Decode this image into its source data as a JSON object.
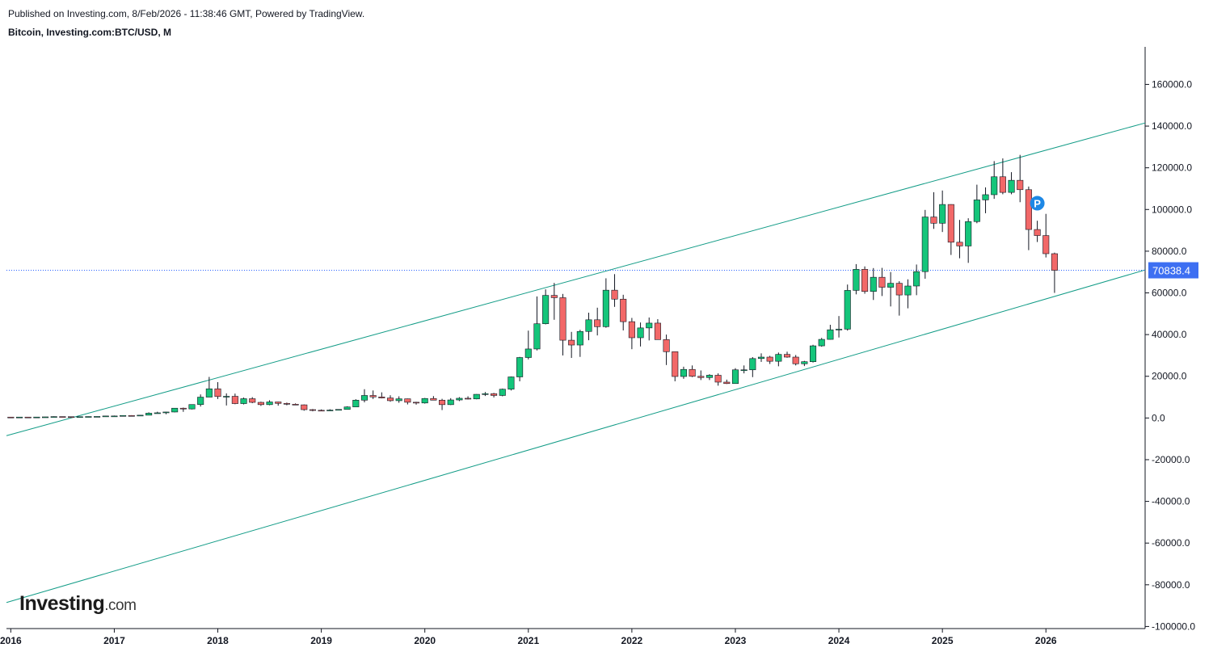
{
  "header": {
    "published_line": "Published on Investing.com, 8/Feb/2026 - 11:38:46 GMT, Powered by TradingView.",
    "symbol_line": "Bitcoin, Investing.com:BTC/USD, M"
  },
  "logo": {
    "brand": "Investing",
    "suffix": ".com"
  },
  "colors": {
    "up": "#14c57a",
    "down": "#f26868",
    "wick": "#131722",
    "channel": "#139c87",
    "price_line": "#2962ff",
    "price_badge": "#3d6ff2"
  },
  "chart_data": {
    "type": "candlestick",
    "interval": "M",
    "yticks": [
      160000,
      140000,
      120000,
      100000,
      80000,
      60000,
      40000,
      20000,
      0,
      -20000,
      -40000,
      -60000,
      -80000,
      -100000
    ],
    "ytick_labels": [
      "160000.0",
      "140000.0",
      "120000.0",
      "100000.0",
      "80000.0",
      "60000.0",
      "40000.0",
      "20000.0",
      "0.0",
      "-20000.0",
      "-40000.0",
      "-60000.0",
      "-80000.0",
      "-100000.0"
    ],
    "ylim": [
      -101000,
      178000
    ],
    "xlim": [
      "2016-01",
      "2026-12"
    ],
    "xticks": [
      {
        "label": "2016",
        "date": "2016-01"
      },
      {
        "label": "2017",
        "date": "2017-01"
      },
      {
        "label": "2018",
        "date": "2018-01"
      },
      {
        "label": "2019",
        "date": "2019-01"
      },
      {
        "label": "2020",
        "date": "2020-01"
      },
      {
        "label": "2021",
        "date": "2021-01"
      },
      {
        "label": "2022",
        "date": "2022-01"
      },
      {
        "label": "2023",
        "date": "2023-01"
      },
      {
        "label": "2024",
        "date": "2024-01"
      },
      {
        "label": "2025",
        "date": "2025-01"
      },
      {
        "label": "2026",
        "date": "2026-01"
      }
    ],
    "candles": [
      {
        "date": "2016-01",
        "o": 430,
        "h": 460,
        "l": 350,
        "c": 370
      },
      {
        "date": "2016-02",
        "o": 370,
        "h": 440,
        "l": 360,
        "c": 435
      },
      {
        "date": "2016-03",
        "o": 435,
        "h": 440,
        "l": 400,
        "c": 415
      },
      {
        "date": "2016-04",
        "o": 415,
        "h": 465,
        "l": 410,
        "c": 450
      },
      {
        "date": "2016-05",
        "o": 450,
        "h": 550,
        "l": 440,
        "c": 530
      },
      {
        "date": "2016-06",
        "o": 530,
        "h": 780,
        "l": 520,
        "c": 670
      },
      {
        "date": "2016-07",
        "o": 670,
        "h": 700,
        "l": 610,
        "c": 625
      },
      {
        "date": "2016-08",
        "o": 625,
        "h": 630,
        "l": 480,
        "c": 575
      },
      {
        "date": "2016-09",
        "o": 575,
        "h": 620,
        "l": 570,
        "c": 610
      },
      {
        "date": "2016-10",
        "o": 610,
        "h": 740,
        "l": 600,
        "c": 700
      },
      {
        "date": "2016-11",
        "o": 700,
        "h": 760,
        "l": 690,
        "c": 745
      },
      {
        "date": "2016-12",
        "o": 745,
        "h": 980,
        "l": 740,
        "c": 965
      },
      {
        "date": "2017-01",
        "o": 965,
        "h": 1160,
        "l": 750,
        "c": 970
      },
      {
        "date": "2017-02",
        "o": 970,
        "h": 1210,
        "l": 910,
        "c": 1190
      },
      {
        "date": "2017-03",
        "o": 1190,
        "h": 1350,
        "l": 890,
        "c": 1080
      },
      {
        "date": "2017-04",
        "o": 1080,
        "h": 1400,
        "l": 1070,
        "c": 1350
      },
      {
        "date": "2017-05",
        "o": 1350,
        "h": 2700,
        "l": 1330,
        "c": 2300
      },
      {
        "date": "2017-06",
        "o": 2300,
        "h": 3000,
        "l": 2100,
        "c": 2480
      },
      {
        "date": "2017-07",
        "o": 2480,
        "h": 2950,
        "l": 1800,
        "c": 2870
      },
      {
        "date": "2017-08",
        "o": 2870,
        "h": 4700,
        "l": 2700,
        "c": 4700
      },
      {
        "date": "2017-09",
        "o": 4700,
        "h": 5000,
        "l": 2950,
        "c": 4340
      },
      {
        "date": "2017-10",
        "o": 4340,
        "h": 6450,
        "l": 4100,
        "c": 6450
      },
      {
        "date": "2017-11",
        "o": 6450,
        "h": 11300,
        "l": 5500,
        "c": 10000
      },
      {
        "date": "2017-12",
        "o": 10000,
        "h": 19700,
        "l": 10000,
        "c": 14000
      },
      {
        "date": "2018-01",
        "o": 14000,
        "h": 17200,
        "l": 9100,
        "c": 10300
      },
      {
        "date": "2018-02",
        "o": 10300,
        "h": 11800,
        "l": 6000,
        "c": 10400
      },
      {
        "date": "2018-03",
        "o": 10400,
        "h": 11700,
        "l": 6600,
        "c": 6900
      },
      {
        "date": "2018-04",
        "o": 6900,
        "h": 9800,
        "l": 6500,
        "c": 9250
      },
      {
        "date": "2018-05",
        "o": 9250,
        "h": 10000,
        "l": 7100,
        "c": 7500
      },
      {
        "date": "2018-06",
        "o": 7500,
        "h": 7800,
        "l": 5800,
        "c": 6400
      },
      {
        "date": "2018-07",
        "o": 6400,
        "h": 8500,
        "l": 6100,
        "c": 7700
      },
      {
        "date": "2018-08",
        "o": 7700,
        "h": 7800,
        "l": 5900,
        "c": 7000
      },
      {
        "date": "2018-09",
        "o": 7000,
        "h": 7400,
        "l": 6100,
        "c": 6600
      },
      {
        "date": "2018-10",
        "o": 6600,
        "h": 7000,
        "l": 6200,
        "c": 6300
      },
      {
        "date": "2018-11",
        "o": 6300,
        "h": 6500,
        "l": 3500,
        "c": 4000
      },
      {
        "date": "2018-12",
        "o": 4000,
        "h": 4300,
        "l": 3200,
        "c": 3700
      },
      {
        "date": "2019-01",
        "o": 3700,
        "h": 4100,
        "l": 3300,
        "c": 3450
      },
      {
        "date": "2019-02",
        "o": 3450,
        "h": 4200,
        "l": 3400,
        "c": 3800
      },
      {
        "date": "2019-03",
        "o": 3800,
        "h": 4100,
        "l": 3700,
        "c": 4100
      },
      {
        "date": "2019-04",
        "o": 4100,
        "h": 5600,
        "l": 4050,
        "c": 5300
      },
      {
        "date": "2019-05",
        "o": 5300,
        "h": 9000,
        "l": 5300,
        "c": 8550
      },
      {
        "date": "2019-06",
        "o": 8550,
        "h": 13800,
        "l": 7500,
        "c": 10800
      },
      {
        "date": "2019-07",
        "o": 10800,
        "h": 13200,
        "l": 9100,
        "c": 10100
      },
      {
        "date": "2019-08",
        "o": 10100,
        "h": 12300,
        "l": 9400,
        "c": 9600
      },
      {
        "date": "2019-09",
        "o": 9600,
        "h": 10900,
        "l": 7800,
        "c": 8300
      },
      {
        "date": "2019-10",
        "o": 8300,
        "h": 10400,
        "l": 7300,
        "c": 9200
      },
      {
        "date": "2019-11",
        "o": 9200,
        "h": 9300,
        "l": 6500,
        "c": 7550
      },
      {
        "date": "2019-12",
        "o": 7550,
        "h": 7750,
        "l": 6400,
        "c": 7200
      },
      {
        "date": "2020-01",
        "o": 7200,
        "h": 9600,
        "l": 6900,
        "c": 9350
      },
      {
        "date": "2020-02",
        "o": 9350,
        "h": 10500,
        "l": 8500,
        "c": 8550
      },
      {
        "date": "2020-03",
        "o": 8550,
        "h": 9200,
        "l": 3800,
        "c": 6400
      },
      {
        "date": "2020-04",
        "o": 6400,
        "h": 9500,
        "l": 6200,
        "c": 8650
      },
      {
        "date": "2020-05",
        "o": 8650,
        "h": 10000,
        "l": 8100,
        "c": 9450
      },
      {
        "date": "2020-06",
        "o": 9450,
        "h": 10400,
        "l": 8900,
        "c": 9150
      },
      {
        "date": "2020-07",
        "o": 9150,
        "h": 11450,
        "l": 8950,
        "c": 11350
      },
      {
        "date": "2020-08",
        "o": 11350,
        "h": 12450,
        "l": 10550,
        "c": 11650
      },
      {
        "date": "2020-09",
        "o": 11650,
        "h": 12050,
        "l": 9850,
        "c": 10800
      },
      {
        "date": "2020-10",
        "o": 10800,
        "h": 14100,
        "l": 10400,
        "c": 13800
      },
      {
        "date": "2020-11",
        "o": 13800,
        "h": 19900,
        "l": 13200,
        "c": 19700
      },
      {
        "date": "2020-12",
        "o": 19700,
        "h": 29300,
        "l": 17600,
        "c": 29000
      },
      {
        "date": "2021-01",
        "o": 29000,
        "h": 41900,
        "l": 28100,
        "c": 33100
      },
      {
        "date": "2021-02",
        "o": 33100,
        "h": 58300,
        "l": 32400,
        "c": 45200
      },
      {
        "date": "2021-03",
        "o": 45200,
        "h": 61700,
        "l": 44900,
        "c": 58800
      },
      {
        "date": "2021-04",
        "o": 58800,
        "h": 64800,
        "l": 47100,
        "c": 57700
      },
      {
        "date": "2021-05",
        "o": 57700,
        "h": 59500,
        "l": 30000,
        "c": 37300
      },
      {
        "date": "2021-06",
        "o": 37300,
        "h": 41300,
        "l": 28800,
        "c": 35000
      },
      {
        "date": "2021-07",
        "o": 35000,
        "h": 42300,
        "l": 29300,
        "c": 41500
      },
      {
        "date": "2021-08",
        "o": 41500,
        "h": 50500,
        "l": 37300,
        "c": 47100
      },
      {
        "date": "2021-09",
        "o": 47100,
        "h": 52900,
        "l": 39600,
        "c": 43800
      },
      {
        "date": "2021-10",
        "o": 43800,
        "h": 67000,
        "l": 43300,
        "c": 61300
      },
      {
        "date": "2021-11",
        "o": 61300,
        "h": 69000,
        "l": 53300,
        "c": 57000
      },
      {
        "date": "2021-12",
        "o": 57000,
        "h": 59100,
        "l": 42000,
        "c": 46200
      },
      {
        "date": "2022-01",
        "o": 46200,
        "h": 48000,
        "l": 33000,
        "c": 38500
      },
      {
        "date": "2022-02",
        "o": 38500,
        "h": 45800,
        "l": 34300,
        "c": 43200
      },
      {
        "date": "2022-03",
        "o": 43200,
        "h": 48200,
        "l": 37200,
        "c": 45500
      },
      {
        "date": "2022-04",
        "o": 45500,
        "h": 47400,
        "l": 37700,
        "c": 37600
      },
      {
        "date": "2022-05",
        "o": 37600,
        "h": 40000,
        "l": 25400,
        "c": 31800
      },
      {
        "date": "2022-06",
        "o": 31800,
        "h": 31900,
        "l": 17600,
        "c": 19900
      },
      {
        "date": "2022-07",
        "o": 19900,
        "h": 24600,
        "l": 18800,
        "c": 23300
      },
      {
        "date": "2022-08",
        "o": 23300,
        "h": 25200,
        "l": 19600,
        "c": 20000
      },
      {
        "date": "2022-09",
        "o": 20000,
        "h": 22800,
        "l": 18200,
        "c": 19400
      },
      {
        "date": "2022-10",
        "o": 19400,
        "h": 21000,
        "l": 18200,
        "c": 20500
      },
      {
        "date": "2022-11",
        "o": 20500,
        "h": 21400,
        "l": 15500,
        "c": 17200
      },
      {
        "date": "2022-12",
        "o": 17200,
        "h": 18400,
        "l": 16300,
        "c": 16500
      },
      {
        "date": "2023-01",
        "o": 16500,
        "h": 23900,
        "l": 16500,
        "c": 23100
      },
      {
        "date": "2023-02",
        "o": 23100,
        "h": 25200,
        "l": 21400,
        "c": 23100
      },
      {
        "date": "2023-03",
        "o": 23100,
        "h": 29200,
        "l": 19600,
        "c": 28500
      },
      {
        "date": "2023-04",
        "o": 28500,
        "h": 31000,
        "l": 26900,
        "c": 29200
      },
      {
        "date": "2023-05",
        "o": 29200,
        "h": 29800,
        "l": 25900,
        "c": 27200
      },
      {
        "date": "2023-06",
        "o": 27200,
        "h": 31400,
        "l": 24800,
        "c": 30500
      },
      {
        "date": "2023-07",
        "o": 30500,
        "h": 31800,
        "l": 28900,
        "c": 29200
      },
      {
        "date": "2023-08",
        "o": 29200,
        "h": 30200,
        "l": 25200,
        "c": 26000
      },
      {
        "date": "2023-09",
        "o": 26000,
        "h": 27400,
        "l": 24900,
        "c": 27000
      },
      {
        "date": "2023-10",
        "o": 27000,
        "h": 35100,
        "l": 26600,
        "c": 34600
      },
      {
        "date": "2023-11",
        "o": 34600,
        "h": 38400,
        "l": 34200,
        "c": 37700
      },
      {
        "date": "2023-12",
        "o": 37700,
        "h": 44700,
        "l": 37600,
        "c": 42300
      },
      {
        "date": "2024-01",
        "o": 42300,
        "h": 48900,
        "l": 38600,
        "c": 42600
      },
      {
        "date": "2024-02",
        "o": 42600,
        "h": 64000,
        "l": 41900,
        "c": 61200
      },
      {
        "date": "2024-03",
        "o": 61200,
        "h": 73800,
        "l": 59300,
        "c": 71300
      },
      {
        "date": "2024-04",
        "o": 71300,
        "h": 72700,
        "l": 59600,
        "c": 60700
      },
      {
        "date": "2024-05",
        "o": 60700,
        "h": 71900,
        "l": 56600,
        "c": 67500
      },
      {
        "date": "2024-06",
        "o": 67500,
        "h": 72000,
        "l": 58500,
        "c": 62700
      },
      {
        "date": "2024-07",
        "o": 62700,
        "h": 70000,
        "l": 53500,
        "c": 64600
      },
      {
        "date": "2024-08",
        "o": 64600,
        "h": 65600,
        "l": 49100,
        "c": 59000
      },
      {
        "date": "2024-09",
        "o": 59000,
        "h": 66500,
        "l": 52600,
        "c": 63300
      },
      {
        "date": "2024-10",
        "o": 63300,
        "h": 73600,
        "l": 58900,
        "c": 70200
      },
      {
        "date": "2024-11",
        "o": 70200,
        "h": 99800,
        "l": 66800,
        "c": 96400
      },
      {
        "date": "2024-12",
        "o": 96400,
        "h": 108300,
        "l": 90700,
        "c": 93400
      },
      {
        "date": "2025-01",
        "o": 93400,
        "h": 109100,
        "l": 89200,
        "c": 102400
      },
      {
        "date": "2025-02",
        "o": 102400,
        "h": 102500,
        "l": 78200,
        "c": 84300
      },
      {
        "date": "2025-03",
        "o": 84300,
        "h": 95000,
        "l": 76600,
        "c": 82500
      },
      {
        "date": "2025-04",
        "o": 82500,
        "h": 95800,
        "l": 74400,
        "c": 94200
      },
      {
        "date": "2025-05",
        "o": 94200,
        "h": 111900,
        "l": 93400,
        "c": 104600
      },
      {
        "date": "2025-06",
        "o": 104600,
        "h": 110600,
        "l": 98200,
        "c": 107100
      },
      {
        "date": "2025-07",
        "o": 107100,
        "h": 123200,
        "l": 105100,
        "c": 115700
      },
      {
        "date": "2025-08",
        "o": 115700,
        "h": 124500,
        "l": 107300,
        "c": 108200
      },
      {
        "date": "2025-09",
        "o": 108200,
        "h": 117900,
        "l": 107300,
        "c": 114000
      },
      {
        "date": "2025-10",
        "o": 114000,
        "h": 126200,
        "l": 103500,
        "c": 109500
      },
      {
        "date": "2025-11",
        "o": 109500,
        "h": 111000,
        "l": 80500,
        "c": 90400
      },
      {
        "date": "2025-12",
        "o": 90400,
        "h": 94600,
        "l": 84400,
        "c": 87500
      },
      {
        "date": "2026-01",
        "o": 87500,
        "h": 97900,
        "l": 77000,
        "c": 78800
      },
      {
        "date": "2026-02",
        "o": 78800,
        "h": 79300,
        "l": 60000,
        "c": 70838.4
      }
    ],
    "channel_lines": [
      {
        "name": "upper",
        "p1": {
          "date": "2016-01",
          "value": -8500
        },
        "p2": {
          "date": "2026-12",
          "value": 141500
        }
      },
      {
        "name": "lower",
        "p1": {
          "date": "2016-01",
          "value": -88500
        },
        "p2": {
          "date": "2026-12",
          "value": 71000
        }
      }
    ],
    "last_price": 70838.4,
    "last_price_label": "70838.4",
    "marker": {
      "label": "P",
      "date": "2025-12",
      "value": 103000
    }
  }
}
